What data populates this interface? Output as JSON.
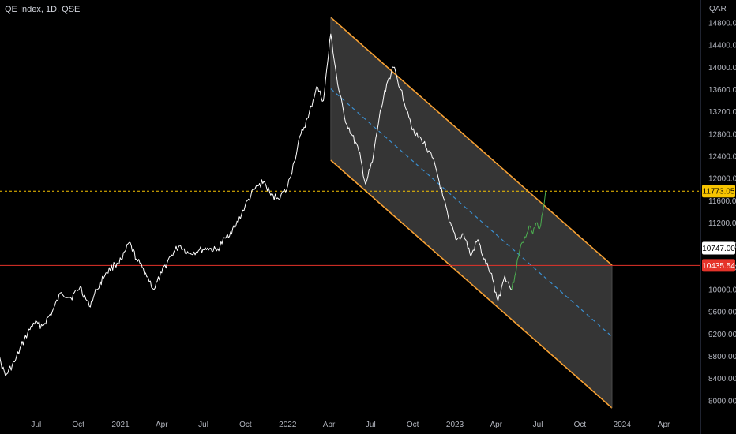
{
  "header": {
    "title": "QE Index, 1D, QSE"
  },
  "colors": {
    "background": "#000000",
    "price": "#ffffff",
    "recent_price": "#4caf50",
    "channel_border": "#f7a133",
    "channel_fill": "#3b3b3b",
    "median": "#3a8fd0",
    "resistance_line": "#e5332a",
    "level_line": "#f7c400"
  },
  "chart_data": {
    "type": "line",
    "title": "QE Index, 1D, QSE",
    "currency_label": "QAR",
    "y_ticks": [
      8000,
      8400,
      8800,
      9200,
      9600,
      10000,
      10400,
      10800,
      11200,
      11600,
      12000,
      12400,
      12800,
      13200,
      13600,
      14000,
      14400,
      14800
    ],
    "ylim": [
      7800,
      14900
    ],
    "x_tick_labels": [
      "Jul",
      "Oct",
      "2021",
      "Apr",
      "Jul",
      "Oct",
      "2022",
      "Apr",
      "Jul",
      "Oct",
      "2023",
      "Apr",
      "Jul",
      "Oct",
      "2024",
      "Apr"
    ],
    "x_range": [
      "2020-04-01",
      "2024-06-20"
    ],
    "series": [
      {
        "values": [
          [
            "2020-04-05",
            8900
          ],
          [
            "2020-04-25",
            8450
          ],
          [
            "2020-05-15",
            8700
          ],
          [
            "2020-06-05",
            9100
          ],
          [
            "2020-06-25",
            9400
          ],
          [
            "2020-07-15",
            9350
          ],
          [
            "2020-08-05",
            9600
          ],
          [
            "2020-08-25",
            9950
          ],
          [
            "2020-09-15",
            9850
          ],
          [
            "2020-10-05",
            10050
          ],
          [
            "2020-10-25",
            9700
          ],
          [
            "2020-11-10",
            10000
          ],
          [
            "2020-11-30",
            10300
          ],
          [
            "2020-12-20",
            10450
          ],
          [
            "2021-01-05",
            10550
          ],
          [
            "2021-01-20",
            10850
          ],
          [
            "2021-02-05",
            10550
          ],
          [
            "2021-02-25",
            10300
          ],
          [
            "2021-03-15",
            10000
          ],
          [
            "2021-04-01",
            10300
          ],
          [
            "2021-04-20",
            10600
          ],
          [
            "2021-05-10",
            10800
          ],
          [
            "2021-05-30",
            10650
          ],
          [
            "2021-06-20",
            10700
          ],
          [
            "2021-07-10",
            10750
          ],
          [
            "2021-07-30",
            10700
          ],
          [
            "2021-08-20",
            10950
          ],
          [
            "2021-09-10",
            11150
          ],
          [
            "2021-09-30",
            11500
          ],
          [
            "2021-10-20",
            11800
          ],
          [
            "2021-11-10",
            11950
          ],
          [
            "2021-11-25",
            11700
          ],
          [
            "2021-12-10",
            11650
          ],
          [
            "2021-12-30",
            11800
          ],
          [
            "2022-01-15",
            12300
          ],
          [
            "2022-01-30",
            12800
          ],
          [
            "2022-02-15",
            13100
          ],
          [
            "2022-03-05",
            13650
          ],
          [
            "2022-03-20",
            13400
          ],
          [
            "2022-04-05",
            14600
          ],
          [
            "2022-04-20",
            13700
          ],
          [
            "2022-05-05",
            13100
          ],
          [
            "2022-05-20",
            12800
          ],
          [
            "2022-06-05",
            12500
          ],
          [
            "2022-06-20",
            11900
          ],
          [
            "2022-07-05",
            12300
          ],
          [
            "2022-07-20",
            13100
          ],
          [
            "2022-08-05",
            13700
          ],
          [
            "2022-08-20",
            14000
          ],
          [
            "2022-09-05",
            13600
          ],
          [
            "2022-09-20",
            13200
          ],
          [
            "2022-10-05",
            12800
          ],
          [
            "2022-10-20",
            12700
          ],
          [
            "2022-11-05",
            12500
          ],
          [
            "2022-11-20",
            12200
          ],
          [
            "2022-12-05",
            11700
          ],
          [
            "2022-12-20",
            11200
          ],
          [
            "2023-01-05",
            10900
          ],
          [
            "2023-01-20",
            11000
          ],
          [
            "2023-02-05",
            10600
          ],
          [
            "2023-02-20",
            10900
          ],
          [
            "2023-03-05",
            10550
          ],
          [
            "2023-03-20",
            10300
          ],
          [
            "2023-04-05",
            9800
          ],
          [
            "2023-04-20",
            10250
          ],
          [
            "2023-05-05",
            10000
          ]
        ]
      },
      {
        "values": [
          [
            "2023-05-05",
            10000
          ],
          [
            "2023-05-12",
            10250
          ],
          [
            "2023-05-20",
            10600
          ],
          [
            "2023-05-28",
            10850
          ],
          [
            "2023-06-05",
            10950
          ],
          [
            "2023-06-12",
            11150
          ],
          [
            "2023-06-20",
            11000
          ],
          [
            "2023-06-27",
            11200
          ],
          [
            "2023-07-05",
            11100
          ],
          [
            "2023-07-12",
            11400
          ],
          [
            "2023-07-18",
            11773
          ]
        ]
      }
    ],
    "channel": {
      "upper": [
        [
          "2022-04-05",
          14900
        ],
        [
          "2023-12-10",
          10440
        ]
      ],
      "lower": [
        [
          "2022-04-05",
          12330
        ],
        [
          "2023-12-10",
          7870
        ]
      ]
    },
    "horizontal_levels": [
      {
        "label": "11773.05",
        "value": 11773.05
      },
      {
        "label": "10435.54",
        "value": 10435.54
      }
    ],
    "price_tags": [
      {
        "label": "10747.00",
        "value": 10747.0
      }
    ]
  }
}
